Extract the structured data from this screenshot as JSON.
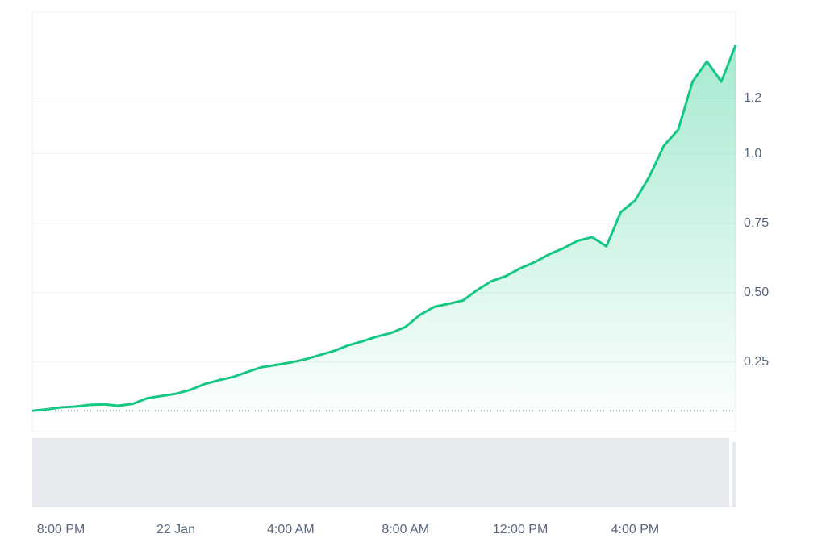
{
  "chart_data": {
    "type": "line",
    "categories": [
      null,
      null,
      "8:00 PM",
      null,
      null,
      null,
      null,
      null,
      null,
      null,
      "22 Jan",
      null,
      null,
      null,
      null,
      null,
      null,
      null,
      "4:00 AM",
      null,
      null,
      null,
      null,
      null,
      null,
      null,
      "8:00 AM",
      null,
      null,
      null,
      null,
      null,
      null,
      null,
      "12:00 PM",
      null,
      null,
      null,
      null,
      null,
      null,
      null,
      "4:00 PM",
      null,
      null,
      null,
      null,
      null,
      null,
      null
    ],
    "series": [
      {
        "color": "#16c784",
        "values": [
          0.075,
          0.08,
          0.087,
          0.09,
          0.096,
          0.098,
          0.093,
          0.1,
          0.12,
          0.128,
          0.136,
          0.15,
          0.171,
          0.185,
          0.197,
          0.215,
          0.232,
          0.24,
          0.249,
          0.26,
          0.275,
          0.29,
          0.31,
          0.325,
          0.342,
          0.355,
          0.377,
          0.42,
          0.449,
          0.46,
          0.472,
          0.51,
          0.542,
          0.56,
          0.588,
          0.61,
          0.638,
          0.66,
          0.687,
          0.7,
          0.667,
          0.79,
          0.832,
          0.919,
          1.029,
          1.087,
          1.26,
          1.333,
          1.26,
          1.391
        ]
      }
    ],
    "ylim": [
      0,
      1.51
    ],
    "yticks": [
      0.25,
      {
        "value": 0.5,
        "label": "0.50"
      },
      0.75,
      {
        "value": 1,
        "label": "1.0"
      },
      1.2
    ],
    "grid": true
  }
}
